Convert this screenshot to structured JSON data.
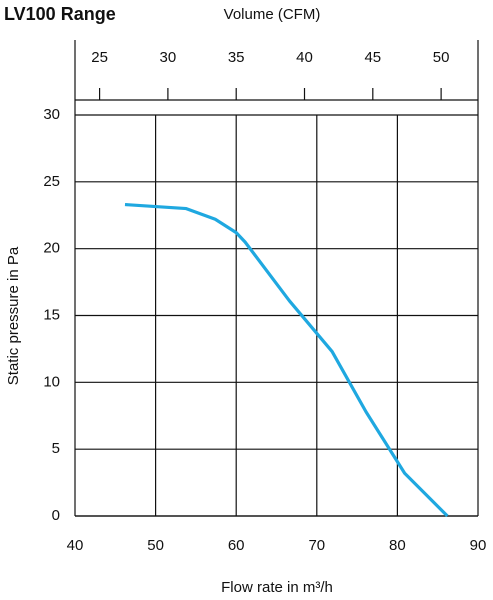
{
  "chart_data": {
    "type": "line",
    "title": "LV100 Range",
    "x2_label": "Volume (CFM)",
    "xlabel": "Flow rate in m³/h",
    "ylabel": "Static pressure in Pa",
    "xlim": [
      40,
      90
    ],
    "xticks": [
      40,
      50,
      60,
      70,
      80,
      90
    ],
    "ylim": [
      0,
      30
    ],
    "yticks": [
      0,
      5,
      10,
      15,
      20,
      25,
      30
    ],
    "x2lim": [
      23.2,
      52.7
    ],
    "x2ticks": [
      25,
      30,
      35,
      40,
      45,
      50
    ],
    "grid": true,
    "x": [
      46.2,
      53.8,
      57.4,
      60,
      61.1,
      66.6,
      71.9,
      76.1,
      80.9,
      86.2
    ],
    "series": [
      {
        "name": "LV100",
        "color": "#1fa8e0",
        "values": [
          23.3,
          23.0,
          22.2,
          21.2,
          20.5,
          16.1,
          12.3,
          7.8,
          3.2,
          0
        ]
      }
    ]
  }
}
